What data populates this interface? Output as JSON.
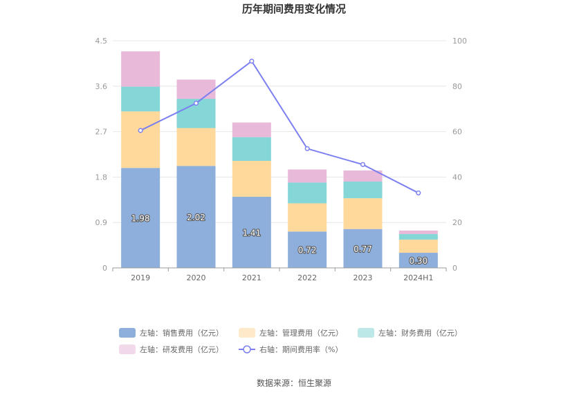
{
  "chart_data": {
    "type": "bar",
    "stacked": true,
    "title": "历年期间费用变化情况",
    "categories": [
      "2019",
      "2020",
      "2021",
      "2022",
      "2023",
      "2024H1"
    ],
    "series": [
      {
        "name": "左轴：销售费用（亿元）",
        "axis": "left",
        "type": "bar",
        "color": "#8eaedc",
        "values": [
          1.98,
          2.02,
          1.41,
          0.72,
          0.77,
          0.3
        ],
        "labels": [
          "1.98",
          "2.02",
          "1.41",
          "0.72",
          "0.77",
          "0.30"
        ]
      },
      {
        "name": "左轴：管理费用（亿元）",
        "axis": "left",
        "type": "bar",
        "color": "#fed99b",
        "values": [
          1.12,
          0.75,
          0.71,
          0.56,
          0.61,
          0.26
        ]
      },
      {
        "name": "左轴：财务费用（亿元）",
        "axis": "left",
        "type": "bar",
        "color": "#85d6d6",
        "values": [
          0.49,
          0.58,
          0.47,
          0.41,
          0.33,
          0.11
        ]
      },
      {
        "name": "左轴：研发费用（亿元）",
        "axis": "left",
        "type": "bar",
        "color": "#e8b9d9",
        "values": [
          0.7,
          0.38,
          0.29,
          0.26,
          0.22,
          0.07
        ]
      },
      {
        "name": "右轴：期间费用率（%）",
        "axis": "right",
        "type": "line",
        "color": "#7b7ff0",
        "values": [
          60.5,
          72.5,
          91.0,
          52.5,
          45.5,
          33.0
        ]
      }
    ],
    "y_left": {
      "min": 0,
      "max": 4.5,
      "ticks": [
        "0",
        "0.9",
        "1.8",
        "2.7",
        "3.6",
        "4.5"
      ]
    },
    "y_right": {
      "min": 0,
      "max": 100,
      "ticks": [
        "0",
        "20",
        "40",
        "60",
        "80",
        "100"
      ]
    },
    "grid": true,
    "legend_position": "bottom"
  },
  "source": "数据来源：恒生聚源"
}
